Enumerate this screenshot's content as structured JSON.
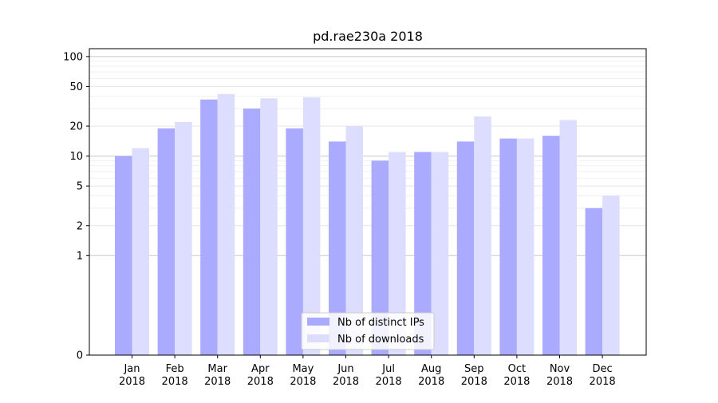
{
  "chart_data": {
    "type": "bar",
    "title": "pd.rae230a 2018",
    "xlabel": "",
    "ylabel": "",
    "categories": [
      "Jan\n2018",
      "Feb\n2018",
      "Mar\n2018",
      "Apr\n2018",
      "May\n2018",
      "Jun\n2018",
      "Jul\n2018",
      "Aug\n2018",
      "Sep\n2018",
      "Oct\n2018",
      "Nov\n2018",
      "Dec\n2018"
    ],
    "series": [
      {
        "name": "Nb of distinct IPs",
        "color": "#aaaaff",
        "values": [
          10,
          19,
          37,
          30,
          19,
          14,
          9,
          11,
          14,
          15,
          16,
          3
        ]
      },
      {
        "name": "Nb of downloads",
        "color": "#ddddff",
        "values": [
          12,
          22,
          42,
          38,
          39,
          20,
          11,
          11,
          25,
          15,
          23,
          4
        ]
      }
    ],
    "y_scale": "symlog",
    "y_ticks": [
      0,
      1,
      2,
      5,
      10,
      20,
      50,
      100
    ],
    "ylim": [
      0,
      120
    ],
    "grid": true,
    "legend_position": "lower-center"
  }
}
